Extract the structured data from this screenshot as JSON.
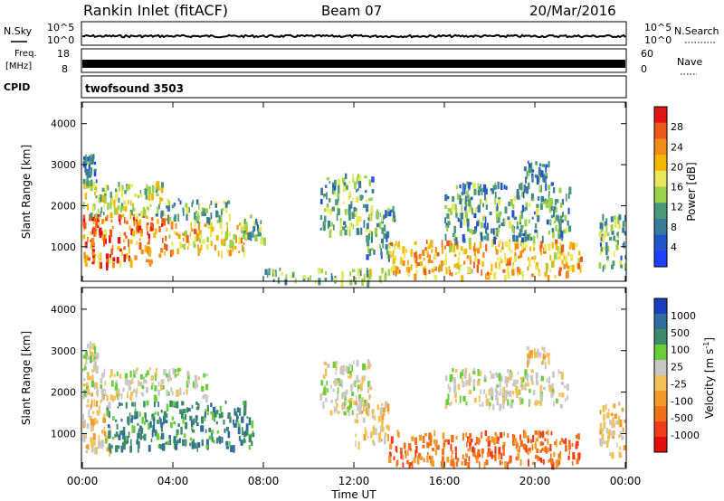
{
  "header": {
    "station": "Rankin Inlet (fitACF)",
    "beam": "Beam 07",
    "date": "20/Mar/2016"
  },
  "status_panels": {
    "nsky_label": "N.Sky",
    "nsky_tick_top": "10^5",
    "nsky_tick_bottom": "10^0",
    "nsearch_label": "N.Search",
    "freq_label_line1": "Freq.",
    "freq_label_line2": "[MHz]",
    "freq_tick_top": "18",
    "freq_tick_bottom": "8",
    "nave_label": "Nave",
    "nave_tick_top": "60",
    "nave_tick_bottom": "0",
    "cpid_label": "CPID",
    "cpid_value": "twofsound 3503"
  },
  "chart_data": [
    {
      "type": "heatmap",
      "title": "",
      "ylabel": "Slant Range [km]",
      "xlabel": "",
      "ylim": [
        180,
        4500
      ],
      "yticks": [
        1000,
        2000,
        3000,
        4000
      ],
      "xlim": [
        "00:00",
        "24:00"
      ],
      "colorbar": {
        "label": "Power [dB]",
        "ticks": [
          4,
          8,
          12,
          16,
          20,
          24,
          28
        ],
        "range": [
          0,
          32
        ],
        "colors": [
          "#1f3fff",
          "#2255cc",
          "#3a7a9a",
          "#4a9a7a",
          "#9bd24b",
          "#e8e85a",
          "#f2b800",
          "#f28c1b",
          "#ee5a1b",
          "#e01616"
        ]
      },
      "regions": [
        {
          "t": [
            0.0,
            3.8
          ],
          "r": [
            600,
            1800
          ],
          "v": 26
        },
        {
          "t": [
            0.0,
            3.5
          ],
          "r": [
            1800,
            2600
          ],
          "v": 16
        },
        {
          "t": [
            3.8,
            7.2
          ],
          "r": [
            900,
            1700
          ],
          "v": 20
        },
        {
          "t": [
            3.2,
            6.5
          ],
          "r": [
            1700,
            2200
          ],
          "v": 12
        },
        {
          "t": [
            7.0,
            8.0
          ],
          "r": [
            1200,
            1800
          ],
          "v": 12
        },
        {
          "t": [
            0.0,
            0.6
          ],
          "r": [
            2600,
            3300
          ],
          "v": 8
        },
        {
          "t": [
            8.0,
            13.5
          ],
          "r": [
            180,
            500
          ],
          "v": 14
        },
        {
          "t": [
            10.5,
            12.8
          ],
          "r": [
            1400,
            2800
          ],
          "v": 12
        },
        {
          "t": [
            12.5,
            13.8
          ],
          "r": [
            800,
            2000
          ],
          "v": 10
        },
        {
          "t": [
            13.5,
            22.0
          ],
          "r": [
            300,
            1200
          ],
          "v": 22
        },
        {
          "t": [
            16.0,
            21.5
          ],
          "r": [
            1200,
            2600
          ],
          "v": 10
        },
        {
          "t": [
            19.5,
            20.6
          ],
          "r": [
            2700,
            3100
          ],
          "v": 8
        },
        {
          "t": [
            22.8,
            24.0
          ],
          "r": [
            500,
            1800
          ],
          "v": 12
        }
      ]
    },
    {
      "type": "heatmap",
      "title": "",
      "ylabel": "Slant Range [km]",
      "xlabel": "Time UT",
      "ylim": [
        180,
        4500
      ],
      "yticks": [
        1000,
        2000,
        3000,
        4000
      ],
      "xticks": [
        "00:00",
        "04:00",
        "08:00",
        "12:00",
        "16:00",
        "20:00",
        "00:00"
      ],
      "colorbar": {
        "label": "Velocity [m s^-1]",
        "ticks": [
          "1000",
          "500",
          "100",
          "25",
          "-25",
          "-100",
          "-500",
          "-1000"
        ],
        "colors": [
          "#1a3fbf",
          "#2f6d9e",
          "#3c8a6a",
          "#6acd3a",
          "#c8c8c8",
          "#f2c15a",
          "#f29a2a",
          "#f0701c",
          "#ee3c1c",
          "#e01010"
        ]
      },
      "regions": [
        {
          "t": [
            0.0,
            1.2
          ],
          "r": [
            600,
            2000
          ],
          "v": "-100"
        },
        {
          "t": [
            1.0,
            7.5
          ],
          "r": [
            700,
            1800
          ],
          "v": "100"
        },
        {
          "t": [
            0.0,
            5.5
          ],
          "r": [
            1900,
            2600
          ],
          "v": "-25"
        },
        {
          "t": [
            0.0,
            0.6
          ],
          "r": [
            2600,
            3300
          ],
          "v": "-25"
        },
        {
          "t": [
            10.5,
            12.8
          ],
          "r": [
            1500,
            2800
          ],
          "v": "-25"
        },
        {
          "t": [
            12.0,
            13.5
          ],
          "r": [
            800,
            1800
          ],
          "v": "-100"
        },
        {
          "t": [
            13.5,
            22.0
          ],
          "r": [
            300,
            1100
          ],
          "v": "-500"
        },
        {
          "t": [
            16.0,
            21.5
          ],
          "r": [
            1700,
            2600
          ],
          "v": "-25"
        },
        {
          "t": [
            19.5,
            20.6
          ],
          "r": [
            2700,
            3100
          ],
          "v": "-100"
        },
        {
          "t": [
            22.8,
            24.0
          ],
          "r": [
            500,
            1800
          ],
          "v": "-100"
        }
      ]
    }
  ]
}
